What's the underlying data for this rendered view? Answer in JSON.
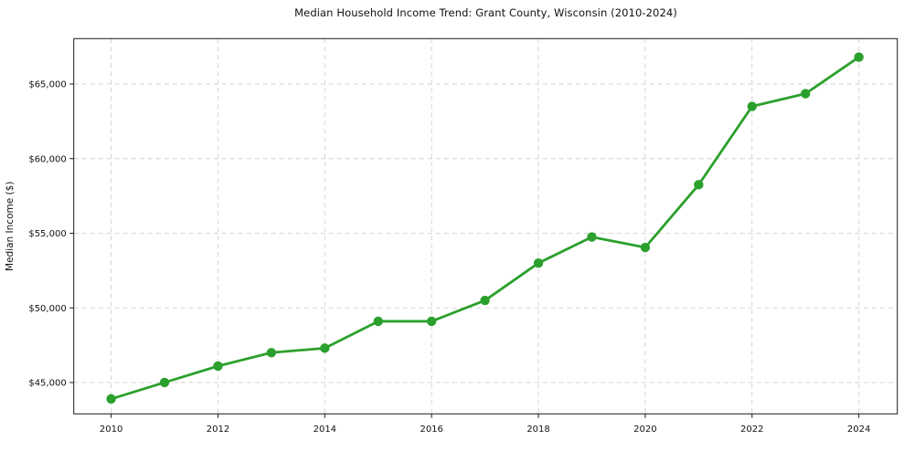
{
  "title": "Median Household Income Trend: Grant County, Wisconsin (2010-2024)",
  "colors": {
    "line": "#2ca02c",
    "marker": "#2ca02c",
    "grid": "#cfcfcf",
    "spine": "#1a1a1a",
    "text": "#111111",
    "background": "#ffffff"
  },
  "chart_data": {
    "type": "line",
    "title": "Median Household Income Trend: Grant County, Wisconsin (2010-2024)",
    "xlabel": "",
    "ylabel": "Median Income ($)",
    "x": [
      2010,
      2011,
      2012,
      2013,
      2014,
      2015,
      2016,
      2017,
      2018,
      2019,
      2020,
      2021,
      2022,
      2023,
      2024
    ],
    "series": [
      {
        "name": "Median Household Income",
        "values": [
          43900,
          45000,
          46100,
          47000,
          47300,
          49100,
          49100,
          50500,
          53000,
          54750,
          54050,
          58250,
          63500,
          64350,
          66800
        ]
      }
    ],
    "xticks": [
      2010,
      2012,
      2014,
      2016,
      2018,
      2020,
      2022,
      2024
    ],
    "xtick_labels": [
      "2010",
      "2012",
      "2014",
      "2016",
      "2018",
      "2020",
      "2022",
      "2024"
    ],
    "yticks": [
      45000,
      50000,
      55000,
      60000,
      65000
    ],
    "ytick_labels": [
      "$45,000",
      "$50,000",
      "$55,000",
      "$60,000",
      "$65,000"
    ],
    "xlim": [
      2009.3,
      2024.72
    ],
    "ylim": [
      42900,
      68040
    ],
    "grid": true,
    "grid_style": "dashed",
    "legend_position": "none",
    "marker": "circle"
  }
}
